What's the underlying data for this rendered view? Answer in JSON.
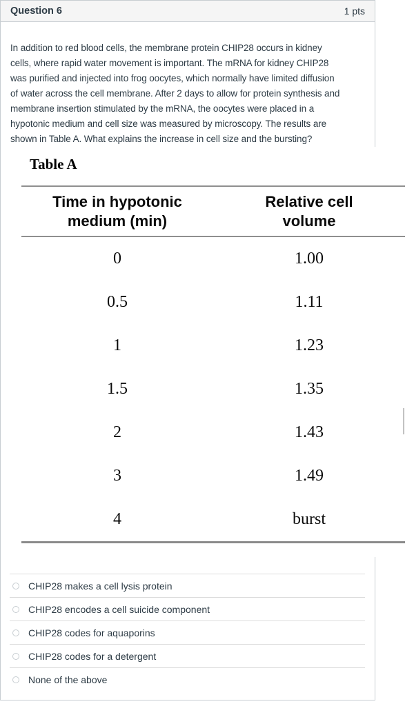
{
  "header": {
    "title": "Question 6",
    "points": "1 pts"
  },
  "question": {
    "lines": [
      "In addition to red blood cells, the membrane protein CHIP28 occurs in kidney",
      "cells, where rapid water movement is important. The mRNA for kidney CHIP28",
      "was purified and injected into frog oocytes, which normally have limited diffusion",
      "of water across the cell membrane. After 2 days to allow for protein synthesis and",
      "membrane insertion stimulated by the mRNA, the oocytes were placed in a",
      "hypotonic medium and cell size was measured by microscopy. The results are",
      "shown in Table A. What explains the increase in cell size and the bursting?"
    ]
  },
  "figure": {
    "title": "Table A",
    "table": {
      "columns": [
        {
          "line1": "Time in hypotonic",
          "line2": "medium (min)"
        },
        {
          "line1": "Relative cell",
          "line2": "volume"
        }
      ],
      "rows": [
        {
          "time": "0",
          "volume": "1.00"
        },
        {
          "time": "0.5",
          "volume": "1.11"
        },
        {
          "time": "1",
          "volume": "1.23"
        },
        {
          "time": "1.5",
          "volume": "1.35"
        },
        {
          "time": "2",
          "volume": "1.43"
        },
        {
          "time": "3",
          "volume": "1.49"
        },
        {
          "time": "4",
          "volume": "burst"
        }
      ]
    }
  },
  "options": [
    {
      "label": "CHIP28 makes a cell lysis protein",
      "selected": false
    },
    {
      "label": "CHIP28 encodes a cell suicide component",
      "selected": false
    },
    {
      "label": "CHIP28 codes for aquaporins",
      "selected": false
    },
    {
      "label": "CHIP28 codes for a detergent",
      "selected": false
    },
    {
      "label": "None of the above",
      "selected": false
    }
  ],
  "colors": {
    "card_border": "#c7cdd1",
    "header_bg": "#f5f5f5",
    "text": "#2d3b45",
    "table_rule": "#8f8f8f",
    "option_separator": "#dcdcdc"
  }
}
